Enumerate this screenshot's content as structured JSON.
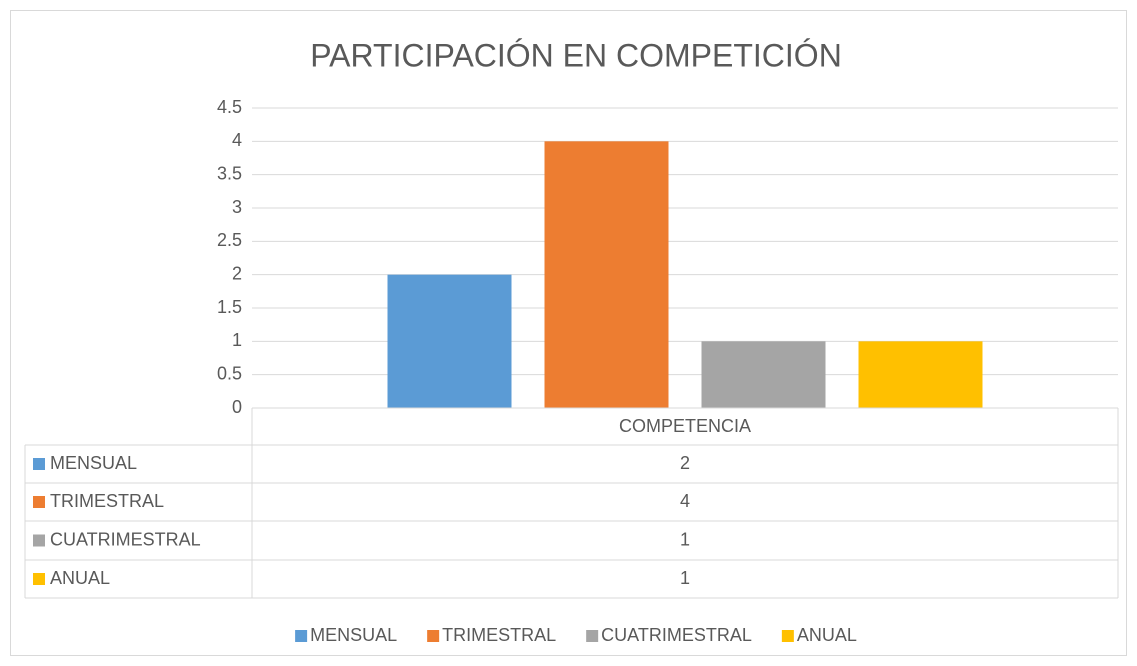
{
  "chart_data": {
    "type": "bar",
    "title": "PARTICIPACIÓN EN COMPETICIÓN",
    "categories": [
      "COMPETENCIA"
    ],
    "series": [
      {
        "name": "MENSUAL",
        "color": "#5b9bd5",
        "values": [
          2
        ]
      },
      {
        "name": "TRIMESTRAL",
        "color": "#ed7d31",
        "values": [
          4
        ]
      },
      {
        "name": "CUATRIMESTRAL",
        "color": "#a5a5a5",
        "values": [
          1
        ]
      },
      {
        "name": "ANUAL",
        "color": "#ffc000",
        "values": [
          1
        ]
      }
    ],
    "ylim": [
      0,
      4.5
    ],
    "yticks": [
      0,
      0.5,
      1,
      1.5,
      2,
      2.5,
      3,
      3.5,
      4,
      4.5
    ],
    "grid": true,
    "data_table": true,
    "legend": "bottom"
  }
}
